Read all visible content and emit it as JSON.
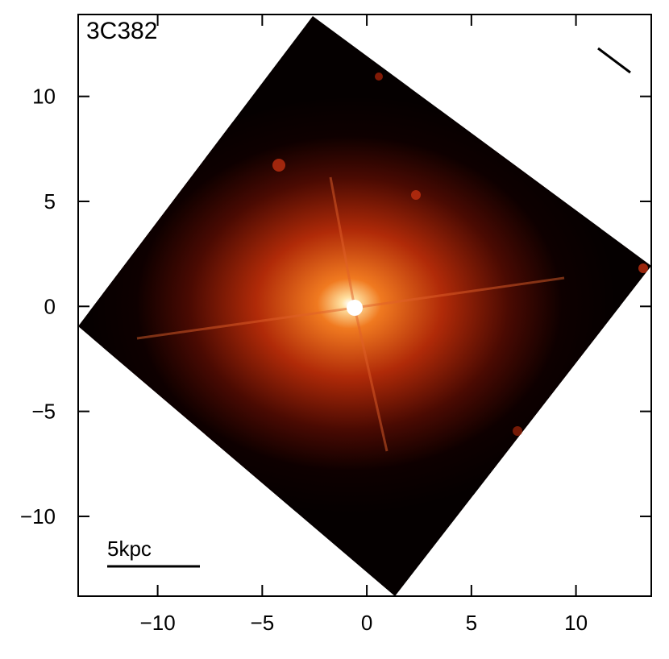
{
  "chart_data": {
    "type": "image",
    "title": "3C382",
    "annotation": "5kpc",
    "xlim": [
      -13.8,
      13.6
    ],
    "ylim": [
      -13.8,
      13.9
    ],
    "xticks": [
      {
        "value": -10,
        "label": "−10"
      },
      {
        "value": -5,
        "label": "−5"
      },
      0,
      5,
      10
    ],
    "yticks": [
      {
        "value": -10,
        "label": "−10"
      },
      {
        "value": -5,
        "label": "−5"
      },
      0,
      5,
      10
    ]
  }
}
